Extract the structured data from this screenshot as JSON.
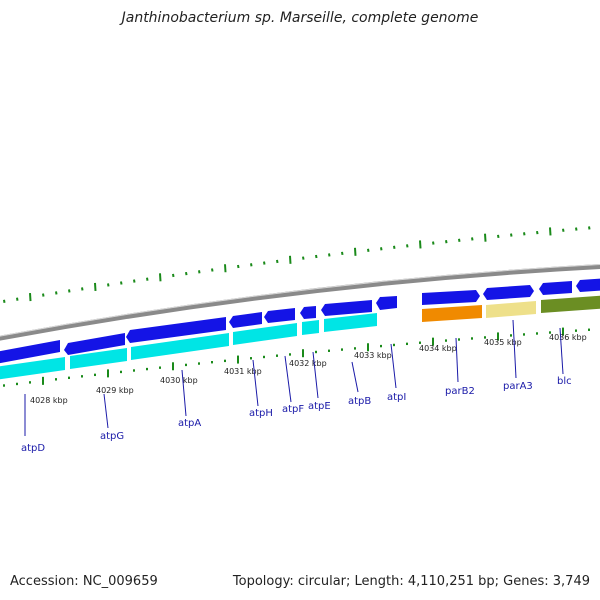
{
  "title": "Janthinobacterium sp. Marseille, complete genome",
  "footer": {
    "accession": "Accession: NC_009659",
    "summary": "Topology: circular; Length: 4,110,251 bp; Genes: 3,749"
  },
  "colors": {
    "backbone": "#8a8a8a",
    "gene_blue": "#1414e6",
    "cds_cyan": "#00e5e5",
    "cds_orange": "#f08a00",
    "cds_khaki": "#eee08a",
    "cds_olive": "#6b8e23",
    "tick_green": "#1a8a1a",
    "label_blue": "#1a1aa8"
  },
  "scale_ticks": [
    "4028 kbp",
    "4029 kbp",
    "4030 kbp",
    "4031 kbp",
    "4032 kbp",
    "4033 kbp",
    "4034 kbp",
    "4035 kbp",
    "4036 kbp"
  ],
  "gene_labels": [
    "atpD",
    "atpG",
    "atpA",
    "atpH",
    "atpF",
    "atpE",
    "atpB",
    "atpI",
    "parB2",
    "parA3",
    "blc"
  ]
}
